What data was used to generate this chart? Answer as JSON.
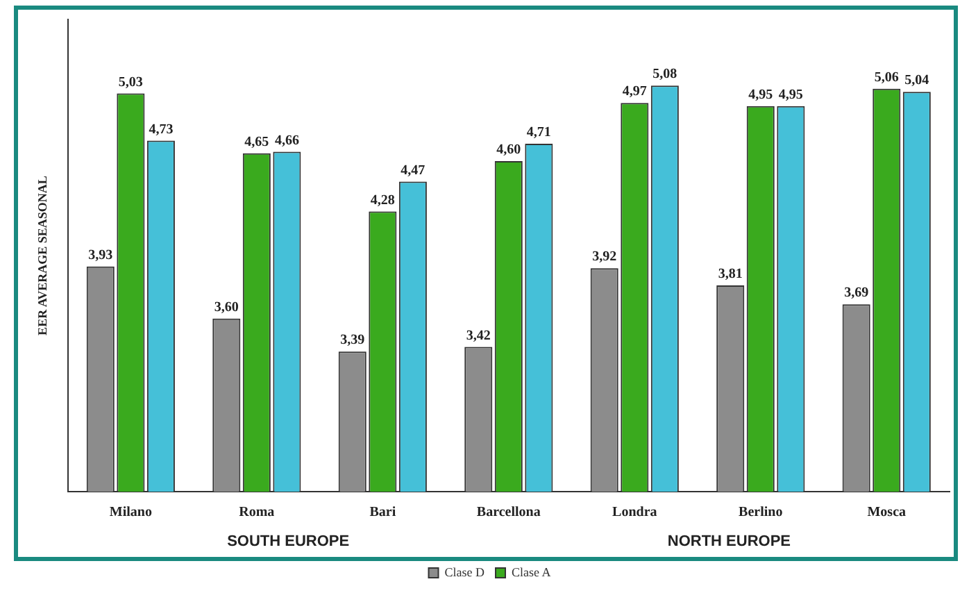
{
  "chart_data": {
    "type": "bar",
    "ylabel": "EER AVERAGE SEASONAL",
    "categories": [
      "Milano",
      "Roma",
      "Bari",
      "Barcellona",
      "Londra",
      "Berlino",
      "Mosca"
    ],
    "series": [
      {
        "name": "Clase D",
        "color": "#8c8c8c",
        "values": [
          3.93,
          3.6,
          3.39,
          3.42,
          3.92,
          3.81,
          3.69
        ],
        "value_labels": [
          "3,93",
          "3,60",
          "3,39",
          "3,42",
          "3,92",
          "3,81",
          "3,69"
        ]
      },
      {
        "name": "Clase A",
        "color": "#3aaa1e",
        "values": [
          5.03,
          4.65,
          4.28,
          4.6,
          4.97,
          4.95,
          5.06
        ],
        "value_labels": [
          "5,03",
          "4,65",
          "4,28",
          "4,60",
          "4,97",
          "4,95",
          "5,06"
        ]
      },
      {
        "color": "#45c0d8",
        "values": [
          4.73,
          4.66,
          4.47,
          4.71,
          5.08,
          4.95,
          5.04
        ],
        "value_labels": [
          "4,73",
          "4,66",
          "4,47",
          "4,71",
          "5,08",
          "4,95",
          "5,04"
        ]
      }
    ],
    "annotations": [
      "SOUTH EUROPE",
      "NORTH EUROPE"
    ],
    "ylim": [
      2.5,
      5.5
    ],
    "grid": false,
    "legend": "bottom"
  }
}
